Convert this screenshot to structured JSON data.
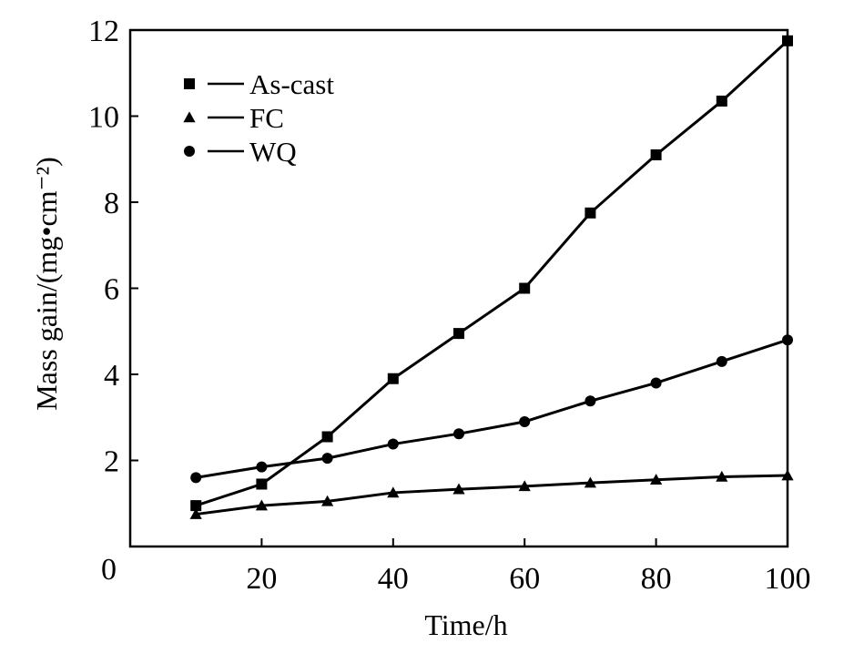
{
  "chart_data": {
    "type": "line",
    "title": "",
    "xlabel": "Time/h",
    "ylabel": "Mass gain/(mg•cm⁻²)",
    "xlim": [
      0,
      100
    ],
    "ylim": [
      0,
      12
    ],
    "x_ticks": [
      20,
      40,
      60,
      80,
      100
    ],
    "y_ticks": [
      0,
      2,
      4,
      6,
      8,
      10,
      12
    ],
    "x": [
      10,
      20,
      30,
      40,
      50,
      60,
      70,
      80,
      90,
      100
    ],
    "series": [
      {
        "name": "As-cast",
        "marker": "square",
        "color": "#000000",
        "values": [
          0.95,
          1.45,
          2.55,
          3.9,
          4.95,
          6.0,
          7.75,
          9.1,
          10.35,
          11.75
        ]
      },
      {
        "name": "FC",
        "marker": "triangle",
        "color": "#000000",
        "values": [
          0.75,
          0.95,
          1.05,
          1.25,
          1.33,
          1.4,
          1.48,
          1.55,
          1.62,
          1.65
        ]
      },
      {
        "name": "WQ",
        "marker": "circle",
        "color": "#000000",
        "values": [
          1.6,
          1.85,
          2.05,
          2.38,
          2.62,
          2.9,
          3.38,
          3.8,
          4.3,
          4.8
        ]
      }
    ],
    "grid": false,
    "legend_position": "top-left"
  }
}
